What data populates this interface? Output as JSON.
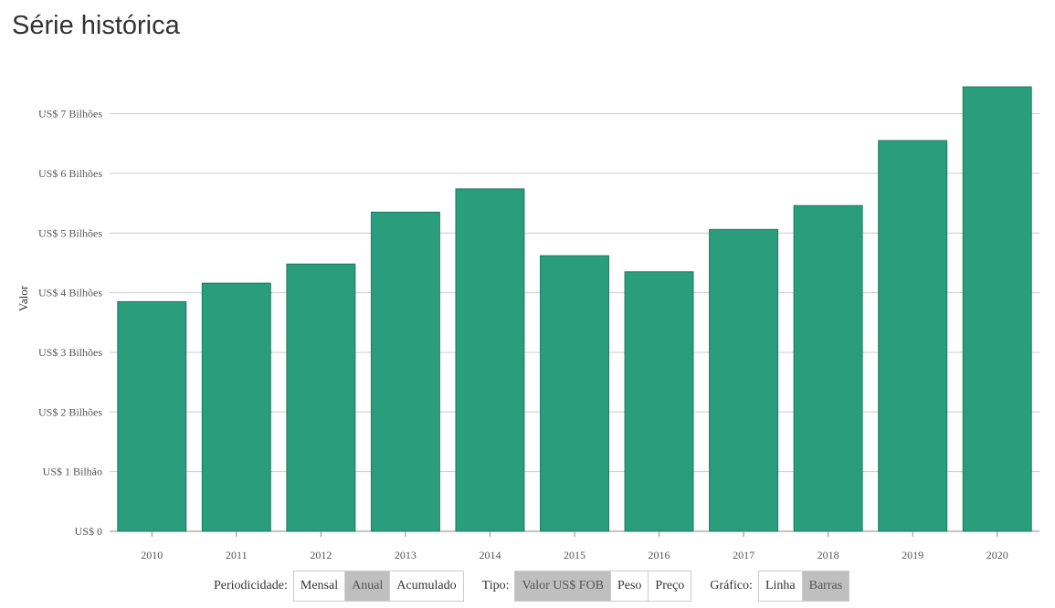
{
  "page": {
    "title": "Série histórica"
  },
  "colors": {
    "bar": "#2a9d7c",
    "bar_stroke": "#1f7a5f",
    "grid": "#cccccc",
    "active_button": "#bfbfbf"
  },
  "chart_data": {
    "type": "bar",
    "title": "",
    "xlabel": "",
    "ylabel": "Valor",
    "categories": [
      "2010",
      "2011",
      "2012",
      "2013",
      "2014",
      "2015",
      "2016",
      "2017",
      "2018",
      "2019",
      "2020"
    ],
    "values": [
      3.85,
      4.16,
      4.48,
      5.35,
      5.74,
      4.62,
      4.35,
      5.06,
      5.46,
      6.55,
      7.45
    ],
    "unit": "US$ Bilhões",
    "ylim": [
      0,
      7.5
    ],
    "yticks": [
      {
        "value": 0,
        "label": "US$ 0"
      },
      {
        "value": 1,
        "label": "US$ 1 Bilhão"
      },
      {
        "value": 2,
        "label": "US$ 2 Bilhões"
      },
      {
        "value": 3,
        "label": "US$ 3 Bilhões"
      },
      {
        "value": 4,
        "label": "US$ 4 Bilhões"
      },
      {
        "value": 5,
        "label": "US$ 5 Bilhões"
      },
      {
        "value": 6,
        "label": "US$ 6 Bilhões"
      },
      {
        "value": 7,
        "label": "US$ 7 Bilhões"
      }
    ],
    "grid": true,
    "legend": "none"
  },
  "controls": {
    "periodicidade": {
      "label": "Periodicidade:",
      "options": [
        "Mensal",
        "Anual",
        "Acumulado"
      ],
      "selected": "Anual"
    },
    "tipo": {
      "label": "Tipo:",
      "options": [
        "Valor US$ FOB",
        "Peso",
        "Preço"
      ],
      "selected": "Valor US$ FOB"
    },
    "grafico": {
      "label": "Gráfico:",
      "options": [
        "Linha",
        "Barras"
      ],
      "selected": "Barras"
    }
  }
}
